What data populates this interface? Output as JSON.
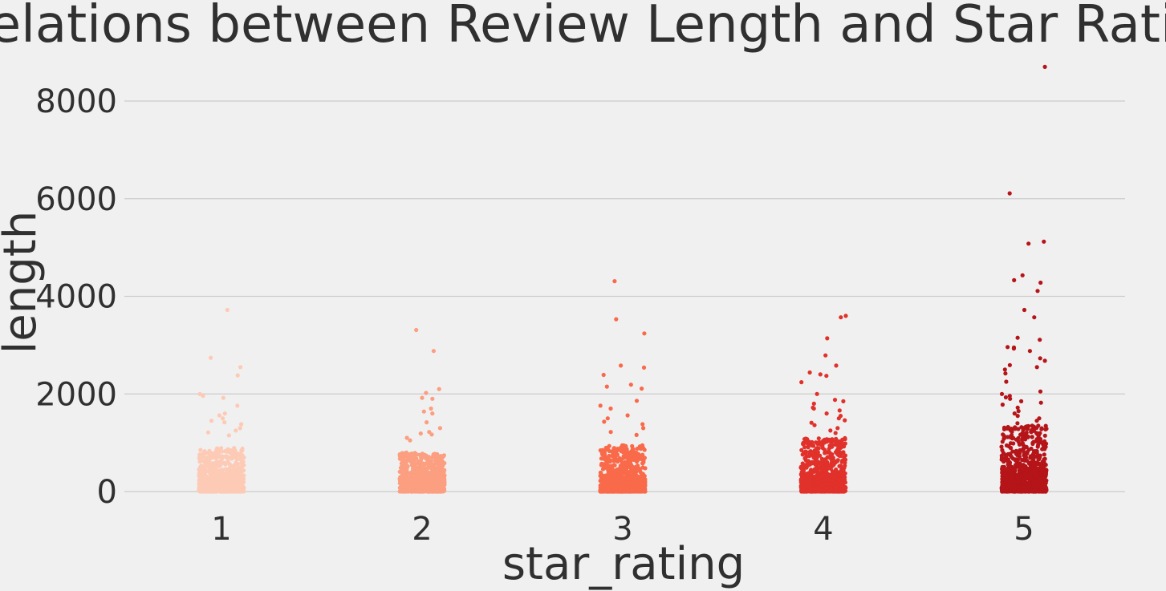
{
  "chart_data": {
    "type": "scatter",
    "style": "strip plot (jittered)",
    "title": "Relations between Review Length and Star Rating",
    "xlabel": "star_rating",
    "ylabel": "length",
    "categories": [
      "1",
      "2",
      "3",
      "4",
      "5"
    ],
    "ylim": [
      -250,
      8800
    ],
    "yticks": [
      "0",
      "2000",
      "4000",
      "6000",
      "8000"
    ],
    "ytick_values": [
      0,
      2000,
      4000,
      6000,
      8000
    ],
    "grid": "horizontal",
    "legend": "none",
    "background": "#f0f0f0",
    "series_colors": [
      "#fdcab5",
      "#fc9e80",
      "#f96a4a",
      "#e1312b",
      "#b51419"
    ],
    "series": [
      {
        "category": "1",
        "outliers": [
          3720,
          2740,
          2550,
          2380,
          2000,
          1960,
          1920,
          1760,
          1600,
          1560,
          1500,
          1450,
          1420,
          1380,
          1300,
          1250,
          1210,
          1150
        ],
        "bulk_max": 900
      },
      {
        "category": "2",
        "outliers": [
          3310,
          2880,
          2100,
          2020,
          1920,
          1900,
          1700,
          1640,
          1600,
          1420,
          1300,
          1220,
          1190,
          1170,
          1100,
          1050
        ],
        "bulk_max": 800
      },
      {
        "category": "3",
        "outliers": [
          4310,
          3530,
          3240,
          2580,
          2540,
          2390,
          2190,
          2150,
          2110,
          1860,
          1760,
          1700,
          1560,
          1500,
          1430,
          1380,
          1300,
          1220,
          1160
        ],
        "bulk_max": 950
      },
      {
        "category": "4",
        "outliers": [
          3600,
          3570,
          3140,
          2790,
          2580,
          2440,
          2400,
          2370,
          2240,
          2000,
          1880,
          1850,
          1800,
          1720,
          1700,
          1660,
          1600,
          1550,
          1500,
          1460,
          1410,
          1360,
          1300,
          1250,
          1200
        ],
        "bulk_max": 1100
      },
      {
        "category": "5",
        "outliers": [
          8700,
          6110,
          5120,
          5080,
          4430,
          4330,
          4280,
          4110,
          3720,
          3570,
          3150,
          3110,
          2960,
          2950,
          2930,
          2880,
          2730,
          2680,
          2590,
          2550,
          2500,
          2420,
          2250,
          2050,
          2000,
          1960,
          1930,
          1900,
          1850,
          1820,
          1780,
          1720,
          1650,
          1600,
          1550,
          1500,
          1450,
          1400,
          1350,
          1300
        ],
        "bulk_max": 1350
      }
    ]
  }
}
